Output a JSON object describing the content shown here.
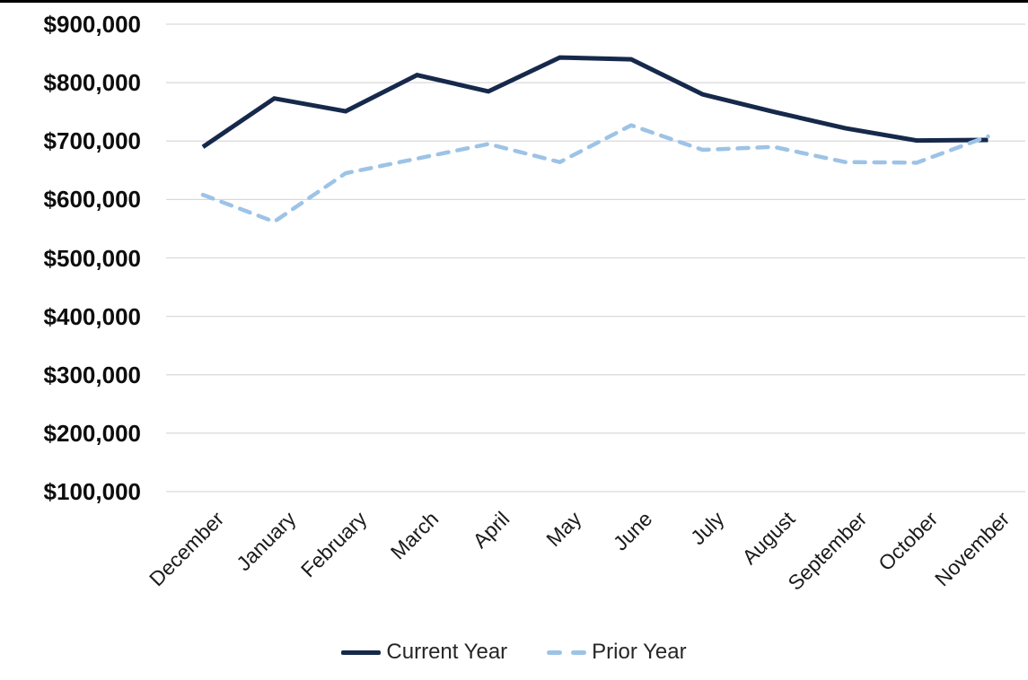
{
  "chart_data": {
    "type": "line",
    "title": "",
    "categories": [
      "December",
      "January",
      "February",
      "March",
      "April",
      "May",
      "June",
      "July",
      "August",
      "September",
      "October",
      "November"
    ],
    "series": [
      {
        "name": "Current Year",
        "color": "#16294B",
        "line_style": "solid",
        "values": [
          690000,
          773000,
          751000,
          813000,
          785000,
          843000,
          840000,
          780000,
          750000,
          722000,
          701000,
          702000
        ]
      },
      {
        "name": "Prior Year",
        "color": "#9DC3E6",
        "line_style": "dashed",
        "values": [
          608000,
          562000,
          645000,
          670000,
          695000,
          664000,
          727000,
          685000,
          690000,
          664000,
          663000,
          708000
        ]
      }
    ],
    "y_axis": {
      "min": 100000,
      "max": 900000,
      "tick_step": 100000,
      "grid": true,
      "gridline_color": "#D9D9D9",
      "ticks": [
        {
          "label": "$900,000",
          "value": 900000
        },
        {
          "label": "$800,000",
          "value": 800000
        },
        {
          "label": "$700,000",
          "value": 700000
        },
        {
          "label": "$600,000",
          "value": 600000
        },
        {
          "label": "$500,000",
          "value": 500000
        },
        {
          "label": "$400,000",
          "value": 400000
        },
        {
          "label": "$300,000",
          "value": 300000
        },
        {
          "label": "$200,000",
          "value": 200000
        },
        {
          "label": "$100,000",
          "value": 100000
        }
      ]
    },
    "x_axis": {
      "label_rotation_deg": -45
    },
    "legend": {
      "position": "bottom-center"
    }
  },
  "frame": {
    "top_border_color": "#000000"
  }
}
